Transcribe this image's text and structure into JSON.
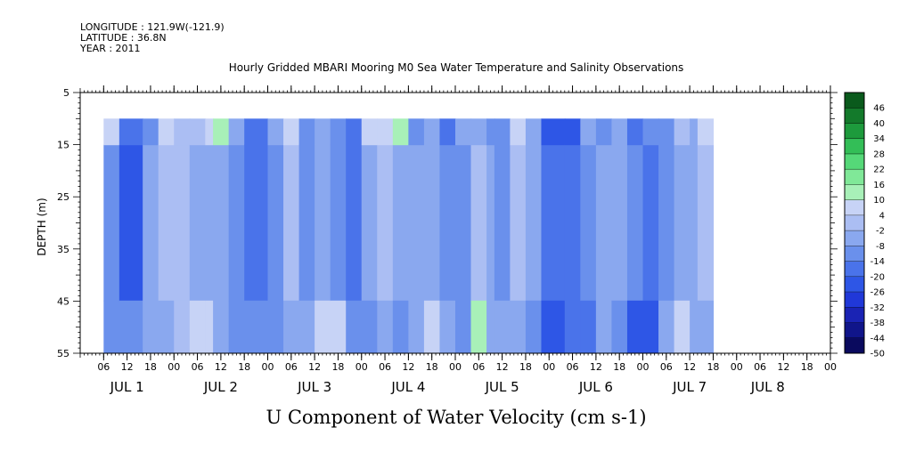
{
  "header": {
    "longitude": "LONGITUDE : 121.9W(-121.9)",
    "latitude": "LATITUDE : 36.8N",
    "year": "YEAR : 2011",
    "title": "Hourly Gridded MBARI Mooring M0 Sea Water Temperature and Salinity Observations"
  },
  "footer": {
    "title": "U Component of Water Velocity (cm s-1)"
  },
  "chart_data": {
    "type": "heatmap",
    "title": "Hourly Gridded MBARI Mooring M0 Sea Water Temperature and Salinity Observations",
    "xlabel": "",
    "ylabel": "DEPTH (m)",
    "variable": "U Component of Water Velocity (cm s-1)",
    "x_range_hours_from_jul1_00": [
      -24,
      168
    ],
    "data_x_range_hours_from_jul1_00": [
      -18,
      138
    ],
    "y_range_m": [
      5,
      55
    ],
    "y_inverted": true,
    "data_depth_range_m": [
      10,
      55
    ],
    "y_ticks": [
      5,
      15,
      25,
      35,
      45,
      55
    ],
    "y_tick_labels": [
      "5",
      "15",
      "25",
      "35",
      "45",
      "55"
    ],
    "hour_ticks": [
      {
        "hour": -18,
        "label": "06"
      },
      {
        "hour": -12,
        "label": "12"
      },
      {
        "hour": -6,
        "label": "18"
      },
      {
        "hour": 0,
        "label": "00"
      },
      {
        "hour": 6,
        "label": "06"
      },
      {
        "hour": 12,
        "label": "12"
      },
      {
        "hour": 18,
        "label": "18"
      },
      {
        "hour": 24,
        "label": "00"
      },
      {
        "hour": 30,
        "label": "06"
      },
      {
        "hour": 36,
        "label": "12"
      },
      {
        "hour": 42,
        "label": "18"
      },
      {
        "hour": 48,
        "label": "00"
      },
      {
        "hour": 54,
        "label": "06"
      },
      {
        "hour": 60,
        "label": "12"
      },
      {
        "hour": 66,
        "label": "18"
      },
      {
        "hour": 72,
        "label": "00"
      },
      {
        "hour": 78,
        "label": "06"
      },
      {
        "hour": 84,
        "label": "12"
      },
      {
        "hour": 90,
        "label": "18"
      },
      {
        "hour": 96,
        "label": "00"
      },
      {
        "hour": 102,
        "label": "06"
      },
      {
        "hour": 108,
        "label": "12"
      },
      {
        "hour": 114,
        "label": "18"
      },
      {
        "hour": 120,
        "label": "00"
      },
      {
        "hour": 126,
        "label": "06"
      },
      {
        "hour": 132,
        "label": "12"
      },
      {
        "hour": 138,
        "label": "18"
      },
      {
        "hour": 144,
        "label": "00"
      },
      {
        "hour": 150,
        "label": "06"
      },
      {
        "hour": 156,
        "label": "12"
      },
      {
        "hour": 162,
        "label": "18"
      },
      {
        "hour": 168,
        "label": "00"
      }
    ],
    "day_labels": [
      {
        "hour": -12,
        "label": "JUL  1"
      },
      {
        "hour": 12,
        "label": "JUL  2"
      },
      {
        "hour": 36,
        "label": "JUL  3"
      },
      {
        "hour": 60,
        "label": "JUL  4"
      },
      {
        "hour": 84,
        "label": "JUL  5"
      },
      {
        "hour": 108,
        "label": "JUL  6"
      },
      {
        "hour": 132,
        "label": "JUL  7"
      },
      {
        "hour": 152,
        "label": "JUL  8"
      }
    ],
    "colorbar": {
      "levels": [
        -50,
        -44,
        -38,
        -32,
        -26,
        -20,
        -14,
        -8,
        -2,
        4,
        10,
        16,
        22,
        28,
        34,
        40,
        46
      ],
      "labels": [
        "-50",
        "-44",
        "-38",
        "-32",
        "-26",
        "-20",
        "-14",
        "-8",
        "-2",
        "4",
        "10",
        "16",
        "22",
        "28",
        "34",
        "40",
        "46"
      ],
      "colors": [
        "#0a0a5e",
        "#10158a",
        "#1a23b4",
        "#2038d8",
        "#2e56e6",
        "#4a73ea",
        "#6a90ec",
        "#8aa8ef",
        "#abbef3",
        "#c7d3f6",
        "#a8f0b8",
        "#80e898",
        "#55d878",
        "#33be57",
        "#1d9a3c",
        "#137a2b",
        "#0a5a1c"
      ]
    },
    "stripes": [
      {
        "x0": -18,
        "x1": -14,
        "v": -12,
        "top": 4,
        "bot": -14
      },
      {
        "x0": -14,
        "x1": -8,
        "v": -22,
        "top": -18,
        "bot": -14
      },
      {
        "x0": -8,
        "x1": -4,
        "v": -8,
        "top": -12,
        "bot": -8
      },
      {
        "x0": -4,
        "x1": 0,
        "v": 0,
        "top": 4,
        "bot": -4
      },
      {
        "x0": 0,
        "x1": 4,
        "v": -2,
        "top": 2,
        "bot": 2
      },
      {
        "x0": 4,
        "x1": 8,
        "v": -6,
        "top": -2,
        "bot": 6
      },
      {
        "x0": 8,
        "x1": 10,
        "v": -4,
        "top": 8,
        "bot": 4
      },
      {
        "x0": 10,
        "x1": 14,
        "v": -6,
        "top": 10,
        "bot": -8
      },
      {
        "x0": 14,
        "x1": 18,
        "v": -10,
        "top": -4,
        "bot": -14
      },
      {
        "x0": 18,
        "x1": 24,
        "v": -16,
        "top": -20,
        "bot": -12
      },
      {
        "x0": 24,
        "x1": 28,
        "v": -10,
        "top": -6,
        "bot": -14
      },
      {
        "x0": 28,
        "x1": 32,
        "v": -2,
        "top": 4,
        "bot": -6
      },
      {
        "x0": 32,
        "x1": 36,
        "v": -10,
        "top": -14,
        "bot": -4
      },
      {
        "x0": 36,
        "x1": 40,
        "v": -6,
        "top": -4,
        "bot": 6
      },
      {
        "x0": 40,
        "x1": 44,
        "v": -10,
        "top": -14,
        "bot": 4
      },
      {
        "x0": 44,
        "x1": 48,
        "v": -16,
        "top": -20,
        "bot": -12
      },
      {
        "x0": 48,
        "x1": 52,
        "v": -6,
        "top": 4,
        "bot": -12
      },
      {
        "x0": 52,
        "x1": 56,
        "v": -2,
        "top": 6,
        "bot": -4
      },
      {
        "x0": 56,
        "x1": 60,
        "v": -6,
        "top": 10,
        "bot": -10
      },
      {
        "x0": 60,
        "x1": 64,
        "v": -8,
        "top": -10,
        "bot": -6
      },
      {
        "x0": 64,
        "x1": 68,
        "v": -4,
        "top": -6,
        "bot": 6
      },
      {
        "x0": 68,
        "x1": 72,
        "v": -14,
        "top": -18,
        "bot": -8
      },
      {
        "x0": 72,
        "x1": 76,
        "v": -10,
        "top": -8,
        "bot": -12
      },
      {
        "x0": 76,
        "x1": 80,
        "v": -2,
        "top": -4,
        "bot": 10
      },
      {
        "x0": 80,
        "x1": 82,
        "v": -8,
        "top": -12,
        "bot": -6
      },
      {
        "x0": 82,
        "x1": 86,
        "v": -12,
        "top": -14,
        "bot": -8
      },
      {
        "x0": 86,
        "x1": 90,
        "v": -2,
        "top": 6,
        "bot": -4
      },
      {
        "x0": 90,
        "x1": 94,
        "v": -8,
        "top": -6,
        "bot": -14
      },
      {
        "x0": 94,
        "x1": 100,
        "v": -18,
        "top": -22,
        "bot": -22
      },
      {
        "x0": 100,
        "x1": 104,
        "v": -20,
        "top": -26,
        "bot": -16
      },
      {
        "x0": 104,
        "x1": 108,
        "v": -12,
        "top": -6,
        "bot": -18
      },
      {
        "x0": 108,
        "x1": 112,
        "v": -8,
        "top": -10,
        "bot": -4
      },
      {
        "x0": 112,
        "x1": 116,
        "v": -6,
        "top": -4,
        "bot": -10
      },
      {
        "x0": 116,
        "x1": 120,
        "v": -14,
        "top": -16,
        "bot": -22
      },
      {
        "x0": 120,
        "x1": 124,
        "v": -16,
        "top": -12,
        "bot": -24
      },
      {
        "x0": 124,
        "x1": 128,
        "v": -10,
        "top": -14,
        "bot": -6
      },
      {
        "x0": 128,
        "x1": 132,
        "v": -4,
        "top": 2,
        "bot": 6
      },
      {
        "x0": 132,
        "x1": 134,
        "v": -8,
        "top": -6,
        "bot": -4
      },
      {
        "x0": 134,
        "x1": 138,
        "v": 0,
        "top": 8,
        "bot": -4
      }
    ]
  }
}
